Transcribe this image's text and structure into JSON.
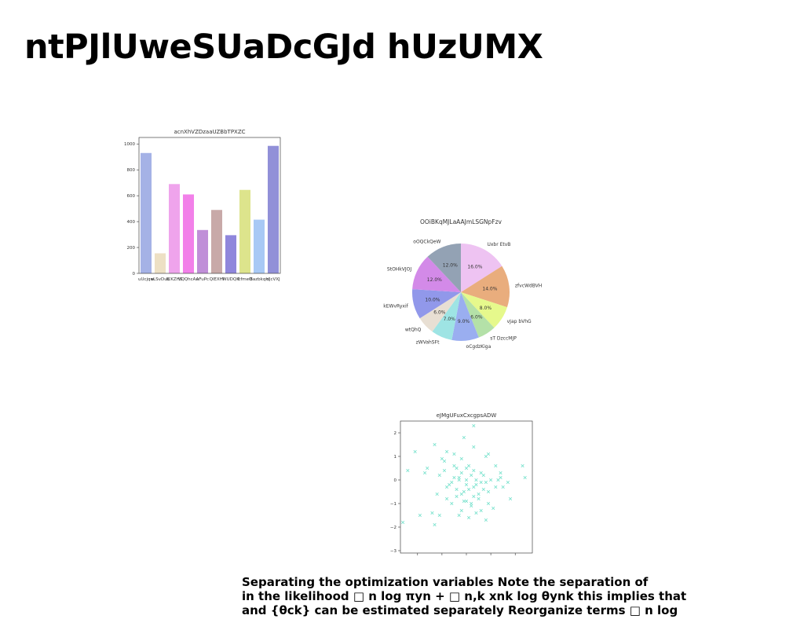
{
  "title": "ntPJlUweSUaDcGJd hUzUMX",
  "body_lines": [
    "Separating the optimization variables Note the separation of",
    "in the likelihood □ n log πyn + □ n,k xnk log θynk this implies that",
    "and {θck} can be estimated separately Reorganize terms □ n log"
  ],
  "chart_data": [
    {
      "type": "bar",
      "title": "acnXhVZDzaaUZBbTPXZC",
      "categories": [
        "uUcjqw",
        "eLSvDub",
        "ICKZHS",
        "VQQhcAA",
        "uFuPc",
        "QlEXHI",
        "WUDQK",
        "ltfmeO",
        "Bazbkqh",
        "dJcVXJ"
      ],
      "values": [
        930,
        155,
        690,
        610,
        335,
        490,
        295,
        645,
        415,
        985
      ],
      "colors": [
        "#a5b2e6",
        "#ede0c4",
        "#efa4ec",
        "#f280e9",
        "#c08fd8",
        "#c8a9a8",
        "#8f86dc",
        "#dde48c",
        "#a8c9f5",
        "#9190d8"
      ],
      "ylim": [
        0,
        1050
      ],
      "yticks": [
        0,
        200,
        400,
        600,
        800,
        1000
      ]
    },
    {
      "type": "pie",
      "title": "OOiBKqMJLaAAJmLSGNpFzv",
      "labels": [
        "Uxbr EtvB",
        "zfvcWdBVH",
        "vJap bVhG",
        "sT DzccMJP",
        "oCgdzKiga",
        "zWVahSFt",
        "wtQhQ",
        "kEWvRyxif",
        "StOHkVJOJ",
        "oOQCkQeW"
      ],
      "values": [
        16,
        14,
        8,
        6,
        9,
        7,
        6,
        10,
        12,
        12
      ],
      "percent_labels": [
        "16.0%",
        "14.0%",
        "8.0%",
        "6.0%",
        "9.0%",
        "7.0%",
        "6.0%",
        "10.0%",
        "12.0%",
        "12.0%"
      ],
      "colors": [
        "#eec3f2",
        "#e9ad7d",
        "#e6f98c",
        "#b4e1a8",
        "#9aaef0",
        "#9ee4e4",
        "#e8dfd3",
        "#9198ea",
        "#d38ae8",
        "#93a2b4"
      ]
    },
    {
      "type": "scatter",
      "title": "eJMgUFuxCxcgpsADW",
      "marker": "x",
      "color": "#7ee3cf",
      "xlim": [
        -2.7,
        2.7
      ],
      "ylim": [
        -3.1,
        2.5
      ],
      "xticks": [
        -2,
        -1,
        0,
        1,
        2
      ],
      "yticks": [
        -3,
        -2,
        -1,
        0,
        1,
        2
      ],
      "x": [
        0.3,
        -0.1,
        -2.1,
        -1.3,
        -0.5,
        0.9,
        0.3,
        -0.8,
        -0.2,
        0.8,
        -1.0,
        1.2,
        -1.6,
        -2.4,
        -1.7,
        -0.4,
        -0.2,
        0.2,
        -0.9,
        -0.5,
        0.0,
        0.4,
        1.3,
        0.7,
        -0.3,
        0.6,
        2.3,
        1.4,
        -0.7,
        2.4,
        0.1,
        -0.1,
        1.2,
        1.7,
        -1.2,
        0.3,
        -0.4,
        0.5,
        -0.8,
        0.0,
        0.9,
        1.8,
        -0.6,
        0.2,
        1.1,
        -1.4,
        0.6,
        -0.3,
        0.4,
        -1.1,
        0.8,
        0.1,
        -0.2,
        1.5,
        -0.9,
        0.3,
        -0.5,
        0.0,
        0.7,
        -2.6,
        -1.9,
        -1.3,
        0.0,
        0.3,
        0.8,
        -0.6,
        -0.3,
        1.0,
        0.5,
        -0.1,
        0.2,
        -0.8,
        1.4,
        -0.4,
        0.6,
        -1.1,
        0.1,
        0.9,
        -0.2,
        0.4
      ],
      "y": [
        2.3,
        1.8,
        1.2,
        1.5,
        1.1,
        1.1,
        1.4,
        1.2,
        0.9,
        1.0,
        0.9,
        0.6,
        0.5,
        0.4,
        0.3,
        0.5,
        0.3,
        0.2,
        0.4,
        0.1,
        0.0,
        0.0,
        0.0,
        0.2,
        0.0,
        -0.1,
        0.6,
        0.1,
        -0.2,
        0.1,
        -0.4,
        -0.5,
        -0.3,
        -0.1,
        -0.6,
        -0.7,
        -0.7,
        -0.8,
        -0.8,
        -0.9,
        -0.5,
        -0.8,
        -1.0,
        -1.0,
        -1.2,
        -1.4,
        -1.3,
        -1.5,
        -1.4,
        -1.5,
        -1.7,
        -1.6,
        -0.6,
        -0.3,
        0.8,
        0.4,
        0.6,
        -0.2,
        -0.4,
        -1.8,
        -1.5,
        -1.9,
        0.5,
        -0.3,
        -0.1,
        -0.1,
        0.1,
        0.0,
        -0.6,
        -0.9,
        -1.1,
        -0.3,
        0.3,
        -0.4,
        0.3,
        0.2,
        0.6,
        -1.0,
        -1.3,
        -0.2
      ]
    }
  ]
}
